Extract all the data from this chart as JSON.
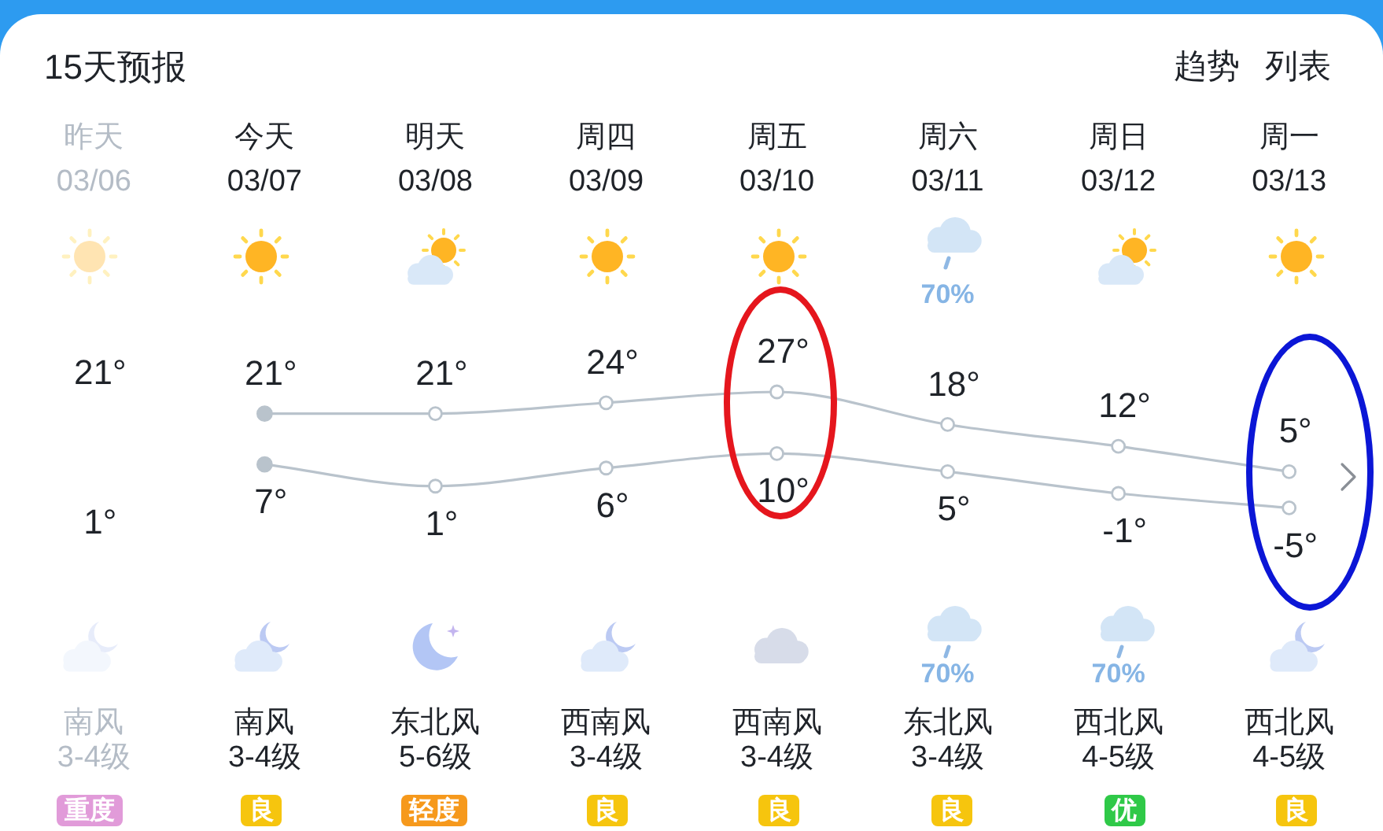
{
  "chart_data": {
    "type": "line",
    "title": "15天预报",
    "categories": [
      "昨天\n03/06",
      "今天\n03/07",
      "明天\n03/08",
      "周四\n03/09",
      "周五\n03/10",
      "周六\n03/11",
      "周日\n03/12",
      "周一\n03/13"
    ],
    "series": [
      {
        "color": "#b9c3cc",
        "values": [
          null,
          21,
          21,
          24,
          27,
          18,
          12,
          5
        ],
        "value_labels": [
          null,
          "21°",
          "21°",
          "24°",
          "27°",
          "18°",
          "12°",
          "5°"
        ]
      },
      {
        "color": "#b9c3cc",
        "values": [
          null,
          7,
          1,
          6,
          10,
          5,
          -1,
          -5
        ],
        "value_labels": [
          null,
          "7°",
          "1°",
          "6°",
          "10°",
          "5°",
          "-1°",
          "-5°"
        ]
      }
    ],
    "marker": "circle",
    "tick_labels": "x",
    "annotations": [
      "趋势",
      "列表",
      "70%",
      "21°",
      "1°",
      "70%",
      "70%",
      "南风\n3-4级",
      "南风\n3-4级",
      "东北风\n5-6级",
      "西南风\n3-4级",
      "西南风\n3-4级",
      "东北风\n3-4级",
      "西北风\n4-5级",
      "西北风\n4-5级",
      "重度",
      "良",
      "轻度",
      "良",
      "良",
      "良",
      "优",
      "良"
    ]
  }
}
